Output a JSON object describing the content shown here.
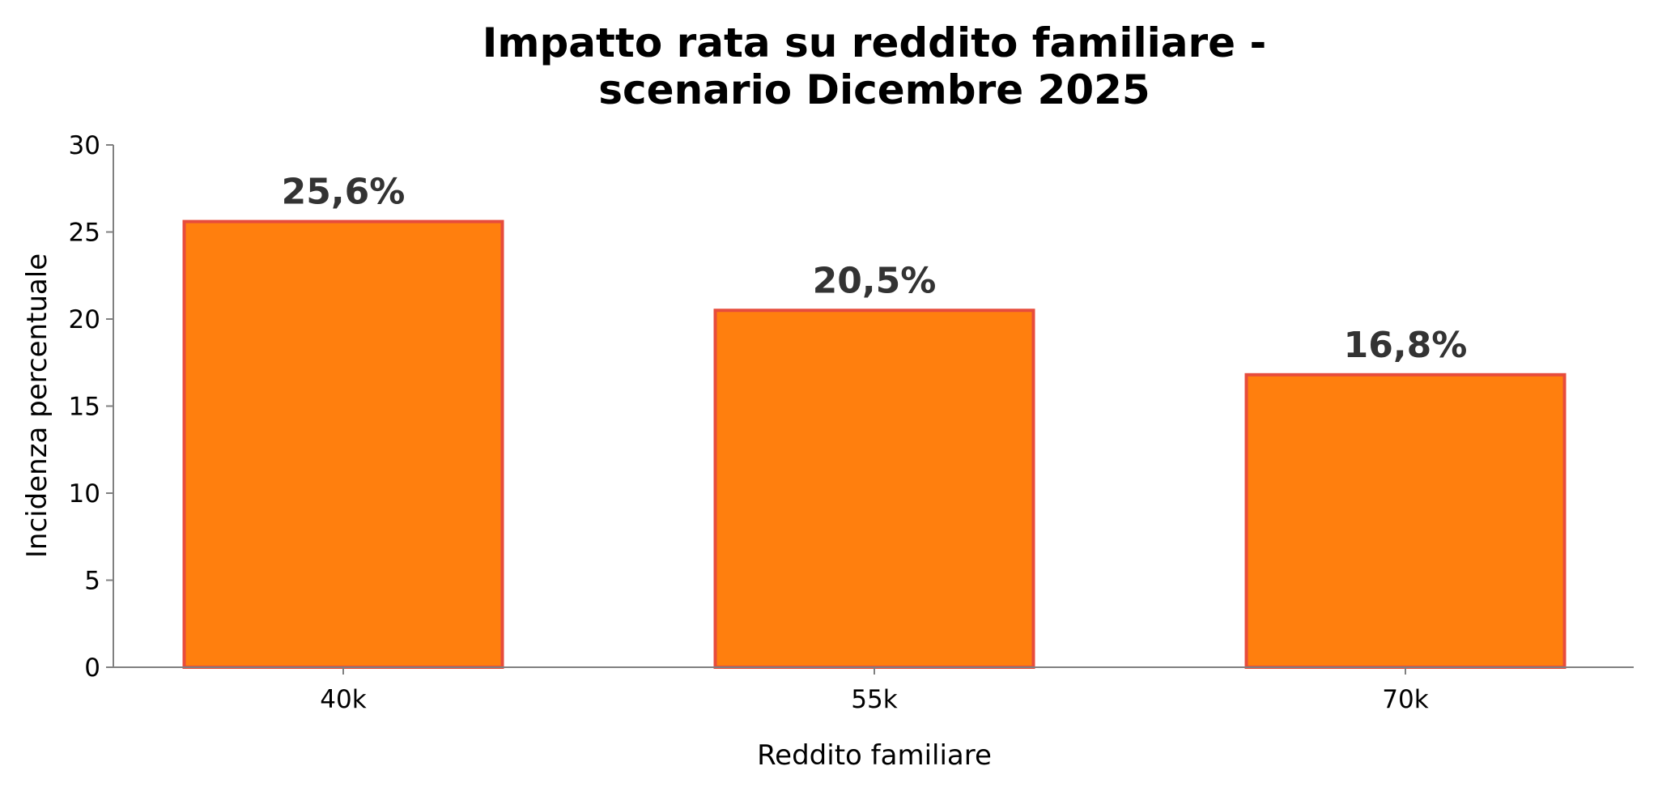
{
  "chart_data": {
    "type": "bar",
    "title_lines": [
      "Impatto rata su reddito familiare -",
      "scenario Dicembre 2025"
    ],
    "xlabel": "Reddito familiare",
    "ylabel": "Incidenza percentuale",
    "categories": [
      "40k",
      "55k",
      "70k"
    ],
    "values": [
      25.6,
      20.5,
      16.8
    ],
    "value_labels": [
      "25,6%",
      "20,5%",
      "16,8%"
    ],
    "ylim": [
      0,
      30
    ],
    "yticks": [
      0,
      5,
      10,
      15,
      20,
      25,
      30
    ],
    "ytick_labels": [
      "0",
      "5",
      "10",
      "15",
      "20",
      "25",
      "30"
    ],
    "grid": false,
    "colors": {
      "bar_fill": "#FF7F0E",
      "bar_edge": "#E74C3C",
      "axis": "#808080",
      "data_label": "#333333"
    }
  }
}
